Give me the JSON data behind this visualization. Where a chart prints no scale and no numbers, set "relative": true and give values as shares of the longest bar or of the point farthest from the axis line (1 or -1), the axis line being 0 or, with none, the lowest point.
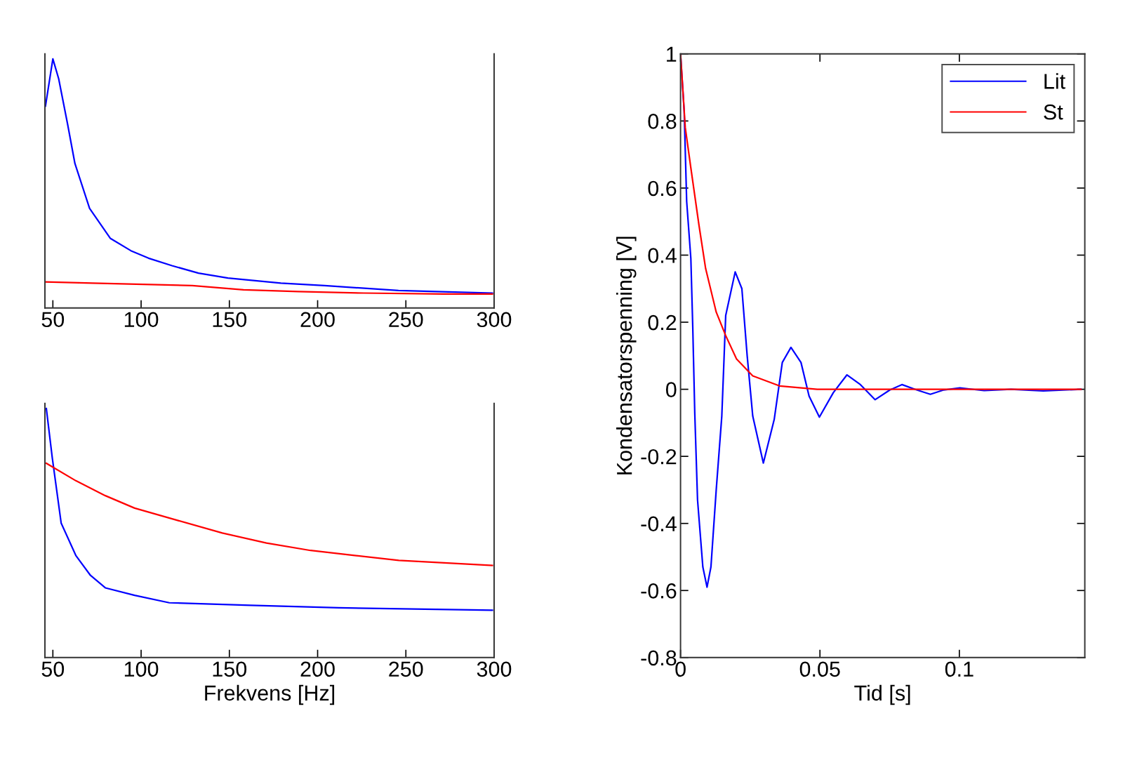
{
  "chart_data": [
    {
      "type": "line",
      "relative": true,
      "tick_labels": "x",
      "xlim": [
        45.5,
        300
      ],
      "xticks": [
        50,
        100,
        150,
        200,
        250,
        300
      ],
      "grid": false,
      "legend": false,
      "series": [
        {
          "color": "#0000ff",
          "x": [
            45.8,
            50,
            53.3,
            58.3,
            62.5,
            70.8,
            82.5,
            94.2,
            104.2,
            117.5,
            132.5,
            149.2,
            179.2,
            204,
            245.8,
            299
          ],
          "values": [
            0.81,
            1.0,
            0.92,
            0.74,
            0.58,
            0.4,
            0.28,
            0.23,
            0.2,
            0.17,
            0.14,
            0.12,
            0.1,
            0.09,
            0.07,
            0.06
          ]
        },
        {
          "color": "#ff0000",
          "x": [
            45.8,
            72.5,
            129,
            158,
            189,
            226,
            271,
            299
          ],
          "values": [
            0.105,
            0.1,
            0.09,
            0.073,
            0.066,
            0.06,
            0.056,
            0.056
          ]
        }
      ]
    },
    {
      "type": "line",
      "relative": true,
      "tick_labels": "x",
      "xlim": [
        45.5,
        300
      ],
      "xticks": [
        50,
        100,
        150,
        200,
        250,
        300
      ],
      "xlabel": "Frekvens [Hz]",
      "grid": false,
      "legend": false,
      "series": [
        {
          "color": "#0000ff",
          "x": [
            46.3,
            49.7,
            54.7,
            63,
            71.3,
            79.7,
            96.3,
            116,
            162,
            212,
            299
          ],
          "values": [
            1.0,
            0.8,
            0.54,
            0.41,
            0.33,
            0.28,
            0.25,
            0.22,
            0.21,
            0.2,
            0.19
          ]
        },
        {
          "color": "#ff0000",
          "x": [
            46.3,
            63,
            79.7,
            96.3,
            121,
            146,
            171,
            196,
            221,
            246,
            299
          ],
          "values": [
            0.78,
            0.71,
            0.65,
            0.6,
            0.55,
            0.5,
            0.46,
            0.43,
            0.41,
            0.39,
            0.37
          ]
        }
      ]
    },
    {
      "type": "line",
      "xlim": [
        0,
        0.145
      ],
      "xticks": [
        0,
        0.05,
        0.1
      ],
      "ylim": [
        -0.8,
        1
      ],
      "yticks": [
        -0.8,
        -0.6,
        -0.4,
        -0.2,
        0,
        0.2,
        0.4,
        0.6,
        0.8,
        1
      ],
      "xlabel": "Tid [s]",
      "ylabel": "Kondensatorspenning [V]",
      "grid": false,
      "legend": "top right",
      "series": [
        {
          "name": "Lit",
          "color": "#0000ff",
          "x": [
            0,
            0.0013,
            0.0022,
            0.0037,
            0.0044,
            0.0051,
            0.0061,
            0.008,
            0.0095,
            0.0109,
            0.0128,
            0.0148,
            0.0162,
            0.0196,
            0.022,
            0.0239,
            0.0259,
            0.0297,
            0.0336,
            0.0365,
            0.0396,
            0.0432,
            0.0461,
            0.0498,
            0.0548,
            0.0597,
            0.0645,
            0.0698,
            0.0751,
            0.0794,
            0.0847,
            0.0896,
            0.0944,
            0.1002,
            0.1089,
            0.1185,
            0.1301,
            0.1436
          ],
          "values": [
            1,
            0.83,
            0.56,
            0.39,
            0.18,
            -0.07,
            -0.33,
            -0.53,
            -0.59,
            -0.53,
            -0.3,
            -0.08,
            0.22,
            0.35,
            0.3,
            0.1,
            -0.08,
            -0.22,
            -0.09,
            0.08,
            0.125,
            0.08,
            -0.02,
            -0.083,
            -0.01,
            0.043,
            0.014,
            -0.031,
            -0.002,
            0.014,
            -0.002,
            -0.015,
            -0.002,
            0.004,
            -0.004,
            0,
            -0.005,
            0
          ]
        },
        {
          "name": "St",
          "color": "#ff0000",
          "x": [
            0,
            0.0017,
            0.0037,
            0.0066,
            0.009,
            0.0128,
            0.0162,
            0.0201,
            0.0259,
            0.0355,
            0.049,
            0.1436
          ],
          "values": [
            1,
            0.78,
            0.66,
            0.49,
            0.36,
            0.23,
            0.16,
            0.09,
            0.04,
            0.01,
            0,
            0
          ]
        }
      ]
    }
  ]
}
